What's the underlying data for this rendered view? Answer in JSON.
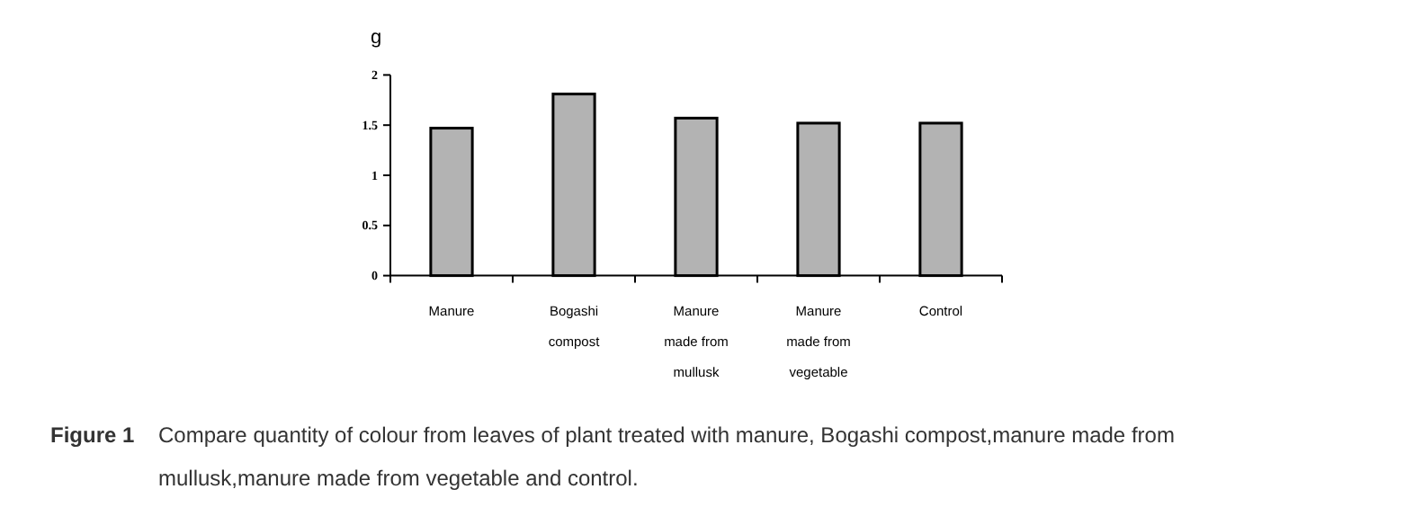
{
  "chart_data": {
    "type": "bar",
    "ylabel": "g",
    "categories": [
      "Manure",
      "Bogashi compost",
      "Manure made from mullusk",
      "Manure made from vegetable",
      "Control"
    ],
    "values": [
      1.47,
      1.81,
      1.57,
      1.52,
      1.52
    ],
    "color": "#b3b3b3",
    "ylim": [
      0,
      2
    ],
    "yticks": [
      0,
      0.5,
      1,
      1.5,
      2
    ],
    "grid": false,
    "annotations": [
      "Figure 1  Compare quantity of colour from leaves of plant treated with manure, Bogashi compost,manure made from mullusk,manure made from vegetable and control."
    ]
  }
}
